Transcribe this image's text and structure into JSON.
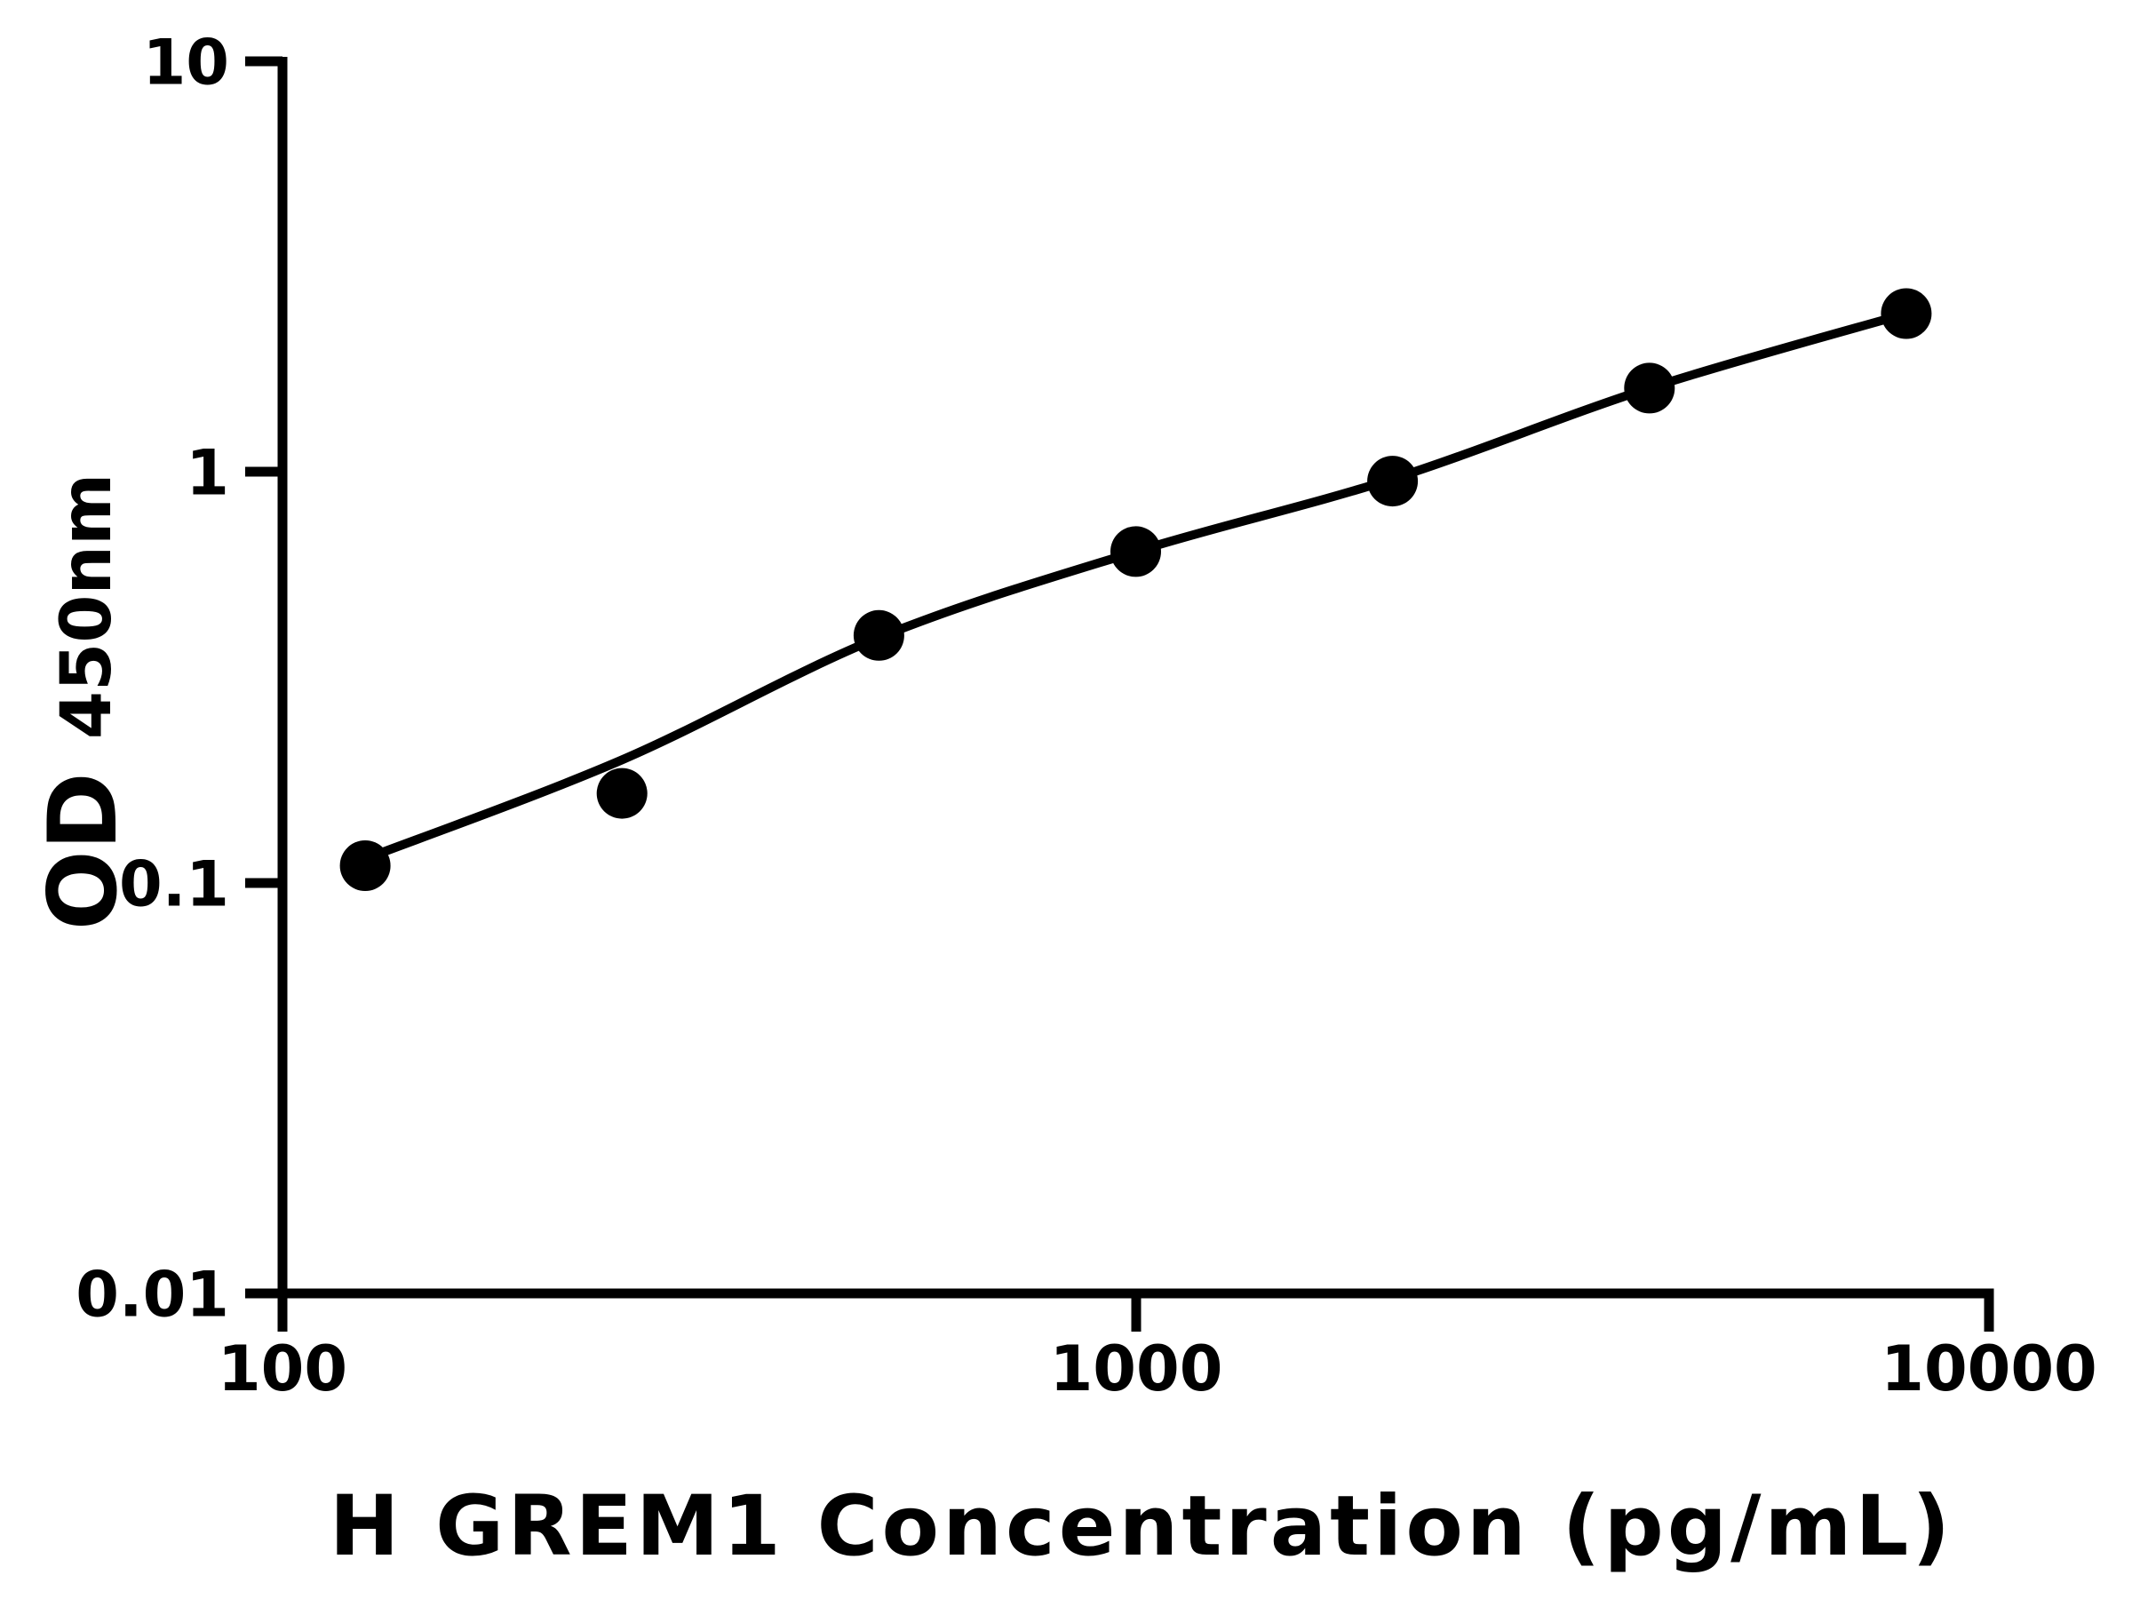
{
  "figure": {
    "background": "#ffffff",
    "ink": "#000000"
  },
  "axes": {
    "x": {
      "title": "H GREM1 Concentration (pg/mL)",
      "scale": "log10",
      "range": [
        100,
        10000
      ],
      "tick_labels": [
        "100",
        "1000",
        "10000"
      ],
      "tick_values": [
        100,
        1000,
        10000
      ]
    },
    "y": {
      "title_main": "OD",
      "title_sub": "450nm",
      "scale": "log10",
      "range": [
        0.01,
        10
      ],
      "tick_labels": [
        "10",
        "1",
        "0.1",
        "0.01"
      ],
      "tick_values": [
        10,
        1,
        0.1,
        0.01
      ]
    }
  },
  "chart_data": {
    "type": "scatter",
    "title": "",
    "xlabel": "H GREM1 Concentration (pg/mL)",
    "ylabel": "OD450nm",
    "xscale": "log",
    "yscale": "log",
    "xlim": [
      100,
      10000
    ],
    "ylim": [
      0.01,
      10
    ],
    "xticks": [
      100,
      1000,
      10000
    ],
    "yticks": [
      10,
      1,
      0.1,
      0.01
    ],
    "grid": false,
    "legend": "none",
    "series": [
      {
        "name": "standards",
        "style": "filled-circle",
        "color": "#000000",
        "x": [
          125,
          250,
          500,
          1000,
          2000,
          4000,
          8000
        ],
        "y": [
          0.11,
          0.165,
          0.4,
          0.64,
          0.95,
          1.6,
          2.43
        ]
      },
      {
        "name": "fitted-curve",
        "style": "smooth-line",
        "color": "#000000",
        "x": [
          126,
          250,
          500,
          1000,
          2000,
          4000,
          8000
        ],
        "y": [
          0.115,
          0.199,
          0.395,
          0.64,
          0.962,
          1.6,
          2.43
        ]
      }
    ]
  }
}
